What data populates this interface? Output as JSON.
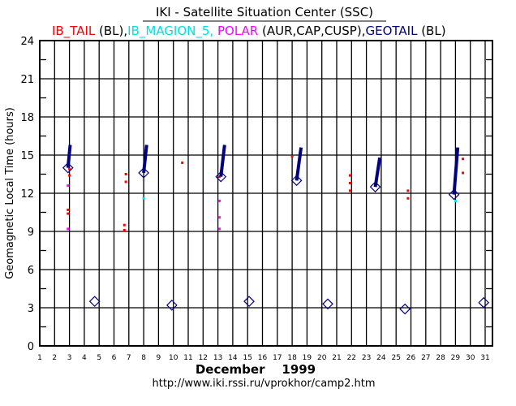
{
  "chart_data": {
    "type": "scatter",
    "title": "IKI - Satellite Situation Center (SSC)",
    "legend": [
      {
        "name": "IB_TAIL",
        "suffix": " (BL),",
        "color": "#ff0000"
      },
      {
        "name": "IB_MAGION_5,",
        "suffix": " ",
        "color": "#00e0e0"
      },
      {
        "name": "POLAR",
        "suffix": " (AUR,CAP,CUSP),",
        "color": "#ff00ff"
      },
      {
        "name": "GEOTAIL",
        "suffix": " (BL)",
        "color": "#000080"
      }
    ],
    "legend_placement": "top",
    "xlabel": "December    1999",
    "ylabel": "Geomagnetic Local Time  (hours)",
    "footer": "http://www.iki.rssi.ru/vprokhor/camp2.htm",
    "xlim": [
      1,
      31.5
    ],
    "ylim": [
      0,
      24
    ],
    "xticks": [
      1,
      2,
      3,
      4,
      5,
      6,
      7,
      8,
      9,
      10,
      11,
      12,
      13,
      14,
      15,
      16,
      17,
      18,
      19,
      20,
      21,
      22,
      23,
      24,
      25,
      26,
      27,
      28,
      29,
      30,
      31
    ],
    "yticks": [
      0,
      3,
      6,
      9,
      12,
      15,
      18,
      21,
      24
    ],
    "grid": true,
    "series": [
      {
        "name": "IB_TAIL",
        "color": "#ff0000",
        "marker": "dot",
        "points": [
          [
            3.0,
            13.9
          ],
          [
            3.0,
            13.4
          ],
          [
            2.9,
            10.7
          ],
          [
            2.9,
            10.4
          ],
          [
            6.8,
            13.5
          ],
          [
            6.8,
            12.9
          ],
          [
            6.7,
            9.5
          ],
          [
            6.7,
            9.1
          ],
          [
            10.6,
            14.4
          ],
          [
            13.1,
            13.3
          ],
          [
            18.0,
            14.9
          ],
          [
            21.9,
            13.4
          ],
          [
            21.9,
            12.8
          ],
          [
            21.9,
            12.2
          ],
          [
            25.8,
            12.2
          ],
          [
            25.8,
            11.6
          ],
          [
            29.5,
            14.7
          ],
          [
            29.5,
            13.6
          ]
        ]
      },
      {
        "name": "IB_MAGION_5",
        "color": "#00e0e0",
        "marker": "dot",
        "points": [
          [
            8.0,
            11.6
          ],
          [
            29.0,
            11.4
          ]
        ]
      },
      {
        "name": "POLAR",
        "color": "#ff00ff",
        "marker": "dot",
        "points": [
          [
            2.9,
            12.6
          ],
          [
            2.9,
            9.2
          ],
          [
            13.1,
            11.4
          ],
          [
            13.1,
            10.1
          ],
          [
            13.1,
            9.2
          ]
        ]
      },
      {
        "name": "GEOTAIL",
        "color": "#000080",
        "marker": "diamond",
        "points": [
          [
            2.9,
            14.0
          ],
          [
            4.7,
            3.5
          ],
          [
            8.0,
            13.6
          ],
          [
            9.9,
            3.2
          ],
          [
            13.2,
            13.3
          ],
          [
            15.1,
            3.5
          ],
          [
            18.3,
            13.0
          ],
          [
            20.4,
            3.3
          ],
          [
            23.6,
            12.5
          ],
          [
            25.6,
            2.9
          ],
          [
            28.9,
            11.9
          ],
          [
            30.9,
            3.4
          ]
        ],
        "segments": [
          [
            [
              2.9,
              14.0
            ],
            [
              3.05,
              15.8
            ]
          ],
          [
            [
              8.0,
              13.6
            ],
            [
              8.2,
              15.8
            ]
          ],
          [
            [
              13.2,
              13.3
            ],
            [
              13.45,
              15.8
            ]
          ],
          [
            [
              18.3,
              13.0
            ],
            [
              18.6,
              15.6
            ]
          ],
          [
            [
              23.6,
              12.5
            ],
            [
              23.9,
              14.8
            ]
          ],
          [
            [
              28.9,
              11.9
            ],
            [
              29.15,
              15.6
            ]
          ]
        ]
      }
    ]
  }
}
